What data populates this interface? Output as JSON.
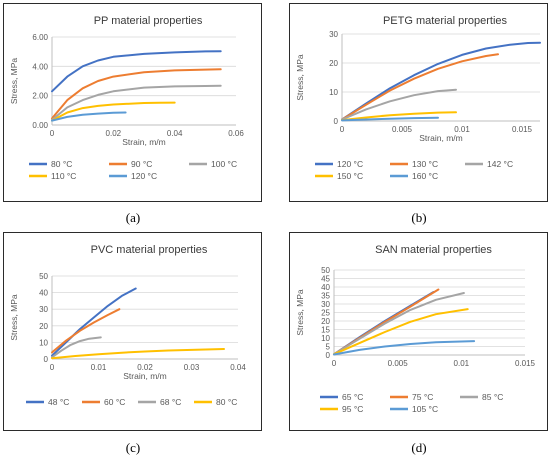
{
  "captions": [
    "(a)",
    "(b)",
    "(c)",
    "(d)"
  ],
  "chart_data": [
    {
      "type": "line",
      "title": "PP material properties",
      "xlabel": "Strain, m/m",
      "ylabel": "Stress, MPa",
      "xlim": [
        0,
        0.06
      ],
      "ylim": [
        0,
        6
      ],
      "xticks": [
        "0",
        "0.02",
        "0.04",
        "0.06"
      ],
      "yticks": [
        "0.00",
        "2.00",
        "4.00",
        "6.00"
      ],
      "grid": "horizontal",
      "legend": "bottom",
      "series": [
        {
          "name": "80 °C",
          "color": "#4472c4",
          "x": [
            0,
            0.005,
            0.01,
            0.015,
            0.02,
            0.03,
            0.04,
            0.05,
            0.055
          ],
          "y": [
            2.3,
            3.3,
            4.0,
            4.4,
            4.65,
            4.85,
            4.95,
            5.02,
            5.03
          ]
        },
        {
          "name": "90 °C",
          "color": "#ed7d31",
          "x": [
            0,
            0.005,
            0.01,
            0.015,
            0.02,
            0.03,
            0.04,
            0.05,
            0.055
          ],
          "y": [
            0.45,
            1.7,
            2.5,
            3.0,
            3.3,
            3.6,
            3.72,
            3.78,
            3.8
          ]
        },
        {
          "name": "100 °C",
          "color": "#a5a5a5",
          "x": [
            0,
            0.005,
            0.01,
            0.015,
            0.02,
            0.03,
            0.04,
            0.05,
            0.055
          ],
          "y": [
            0.35,
            1.2,
            1.7,
            2.05,
            2.3,
            2.55,
            2.63,
            2.66,
            2.67
          ]
        },
        {
          "name": "110 °C",
          "color": "#ffc000",
          "x": [
            0,
            0.005,
            0.01,
            0.015,
            0.02,
            0.03,
            0.035,
            0.04
          ],
          "y": [
            0.3,
            0.85,
            1.15,
            1.3,
            1.4,
            1.5,
            1.52,
            1.53
          ]
        },
        {
          "name": "120 °C",
          "color": "#5b9bd5",
          "x": [
            0,
            0.005,
            0.01,
            0.015,
            0.02,
            0.024
          ],
          "y": [
            0.3,
            0.55,
            0.7,
            0.78,
            0.83,
            0.85
          ]
        }
      ]
    },
    {
      "type": "line",
      "title": "PETG material properties",
      "xlabel": "Strain, m/m",
      "ylabel": "Stress, MPa",
      "xlim": [
        0,
        0.0165
      ],
      "ylim": [
        0,
        30
      ],
      "xticks": [
        "0",
        "0.005",
        "0.01",
        "0.015"
      ],
      "xtickvals": [
        0,
        0.005,
        0.01,
        0.015
      ],
      "yticks": [
        "0",
        "10",
        "20",
        "30"
      ],
      "grid": "horizontal",
      "legend": "bottom",
      "series": [
        {
          "name": "120 °C",
          "color": "#4472c4",
          "x": [
            0,
            0.002,
            0.004,
            0.006,
            0.008,
            0.01,
            0.012,
            0.014,
            0.0155,
            0.0165
          ],
          "y": [
            0.5,
            6.0,
            11.3,
            15.8,
            19.7,
            22.8,
            25.0,
            26.3,
            26.9,
            27.0
          ]
        },
        {
          "name": "130 °C",
          "color": "#ed7d31",
          "x": [
            0,
            0.002,
            0.004,
            0.006,
            0.008,
            0.01,
            0.012,
            0.013
          ],
          "y": [
            0.5,
            5.6,
            10.5,
            14.6,
            18.0,
            20.6,
            22.4,
            23.0
          ]
        },
        {
          "name": "142 °C",
          "color": "#a5a5a5",
          "x": [
            0,
            0.002,
            0.004,
            0.006,
            0.008,
            0.0095
          ],
          "y": [
            0.5,
            4.0,
            6.8,
            8.9,
            10.3,
            10.8
          ]
        },
        {
          "name": "150 °C",
          "color": "#ffc000",
          "x": [
            0,
            0.002,
            0.004,
            0.006,
            0.008,
            0.0095
          ],
          "y": [
            0.3,
            1.2,
            2.0,
            2.5,
            2.9,
            3.0
          ]
        },
        {
          "name": "160 °C",
          "color": "#5b9bd5",
          "x": [
            0,
            0.002,
            0.004,
            0.006,
            0.008
          ],
          "y": [
            0.2,
            0.5,
            0.8,
            1.0,
            1.1
          ]
        }
      ]
    },
    {
      "type": "line",
      "title": "PVC material properties",
      "xlabel": "Strain, m/m",
      "ylabel": "Stress, MPa",
      "xlim": [
        0,
        0.04
      ],
      "ylim": [
        0,
        50
      ],
      "xticks": [
        "0",
        "0.01",
        "0.02",
        "0.03",
        "0.04"
      ],
      "yticks": [
        "0",
        "10",
        "20",
        "30",
        "40",
        "50"
      ],
      "grid": "horizontal",
      "legend": "bottom",
      "series": [
        {
          "name": "48 °C",
          "color": "#4472c4",
          "x": [
            0,
            0.003,
            0.006,
            0.009,
            0.012,
            0.015,
            0.018
          ],
          "y": [
            2.0,
            10.0,
            18.0,
            25.0,
            32.0,
            38.0,
            42.5
          ]
        },
        {
          "name": "60 °C",
          "color": "#ed7d31",
          "x": [
            0,
            0.003,
            0.006,
            0.009,
            0.012,
            0.0145
          ],
          "y": [
            4.0,
            11.0,
            17.0,
            22.0,
            26.5,
            30.0
          ]
        },
        {
          "name": "68 °C",
          "color": "#a5a5a5",
          "x": [
            0,
            0.002,
            0.004,
            0.006,
            0.008,
            0.0105
          ],
          "y": [
            1.0,
            5.0,
            8.5,
            10.8,
            12.2,
            13.0
          ]
        },
        {
          "name": "80 °C",
          "color": "#ffc000",
          "x": [
            0,
            0.005,
            0.01,
            0.015,
            0.02,
            0.025,
            0.03,
            0.035,
            0.037
          ],
          "y": [
            0.5,
            1.8,
            2.9,
            3.8,
            4.5,
            5.1,
            5.5,
            5.9,
            6.0
          ]
        }
      ]
    },
    {
      "type": "line",
      "title": "SAN material properties",
      "xlabel": "",
      "ylabel": "Stress, MPa",
      "xlim": [
        0,
        0.015
      ],
      "ylim": [
        0,
        50
      ],
      "xticks": [
        "0",
        "0.005",
        "0.01",
        "0.015"
      ],
      "yticks": [
        "0",
        "5",
        "10",
        "15",
        "20",
        "25",
        "30",
        "35",
        "40",
        "45",
        "50"
      ],
      "grid": "horizontal",
      "legend": "bottom",
      "series": [
        {
          "name": "65 °C",
          "color": "#4472c4",
          "x": [
            0,
            0.002,
            0.004,
            0.006,
            0.0078
          ],
          "y": [
            0.5,
            10.5,
            20.0,
            29.0,
            37.0
          ]
        },
        {
          "name": "75 °C",
          "color": "#ed7d31",
          "x": [
            0,
            0.002,
            0.004,
            0.006,
            0.0082
          ],
          "y": [
            0.5,
            10.0,
            19.5,
            28.5,
            38.5
          ]
        },
        {
          "name": "85 °C",
          "color": "#a5a5a5",
          "x": [
            0,
            0.002,
            0.004,
            0.006,
            0.008,
            0.0102
          ],
          "y": [
            0.5,
            9.5,
            18.5,
            26.5,
            32.5,
            36.5
          ]
        },
        {
          "name": "95 °C",
          "color": "#ffc000",
          "x": [
            0,
            0.002,
            0.004,
            0.006,
            0.008,
            0.0105
          ],
          "y": [
            0.5,
            7.0,
            13.5,
            19.5,
            24.0,
            27.0
          ]
        },
        {
          "name": "105 °C",
          "color": "#5b9bd5",
          "x": [
            0,
            0.002,
            0.004,
            0.006,
            0.008,
            0.011
          ],
          "y": [
            0.3,
            3.0,
            5.0,
            6.5,
            7.5,
            8.2
          ]
        }
      ]
    }
  ]
}
